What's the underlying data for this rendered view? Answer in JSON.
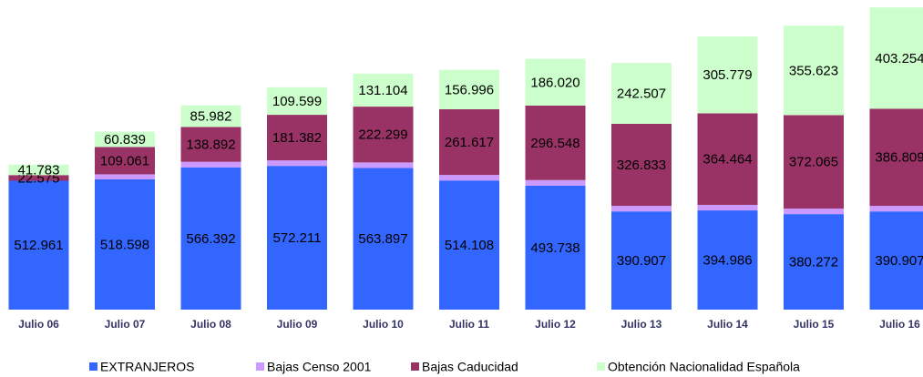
{
  "chart_data": {
    "type": "stacked_bar",
    "categories": [
      "Julio 06",
      "Julio 07",
      "Julio 08",
      "Julio 09",
      "Julio 10",
      "Julio 11",
      "Julio 12",
      "Julio 13",
      "Julio 14",
      "Julio 15",
      "Julio 16"
    ],
    "series": [
      {
        "name": "EXTRANJEROS",
        "color": "#3366ff",
        "values": [
          512961,
          518598,
          566392,
          572211,
          563897,
          514108,
          493738,
          390907,
          394986,
          380272,
          390907
        ],
        "value_labels": [
          "512.961",
          "518.598",
          "566.392",
          "572.211",
          "563.897",
          "514.108",
          "493.738",
          "390.907",
          "394.986",
          "380.272",
          "390.907"
        ]
      },
      {
        "name": "Bajas Censo 2001",
        "color": "#cc99ff",
        "values": [
          0,
          20000,
          22000,
          22000,
          22000,
          22000,
          22000,
          22000,
          22000,
          22000,
          22000
        ]
      },
      {
        "name": "Bajas Caducidad",
        "color": "#993366",
        "values": [
          22575,
          109061,
          138892,
          181382,
          222299,
          261617,
          296548,
          326833,
          364464,
          372065,
          386809
        ],
        "value_labels": [
          "22.575",
          "109.061",
          "138.892",
          "181.382",
          "222.299",
          "261.617",
          "296.548",
          "326.833",
          "364.464",
          "372.065",
          "386.809"
        ]
      },
      {
        "name": "Obtención Nacionalidad Española",
        "color": "#ccffcc",
        "values": [
          41783,
          60839,
          85982,
          109599,
          131104,
          156996,
          186020,
          242507,
          305779,
          355623,
          403254
        ],
        "value_labels": [
          "41.783",
          "60.839",
          "85.982",
          "109.599",
          "131.104",
          "156.996",
          "186.020",
          "242.507",
          "305.779",
          "355.623",
          "403.254"
        ]
      }
    ],
    "ylim": [
      0,
      1200000
    ],
    "legend": "bottom"
  }
}
